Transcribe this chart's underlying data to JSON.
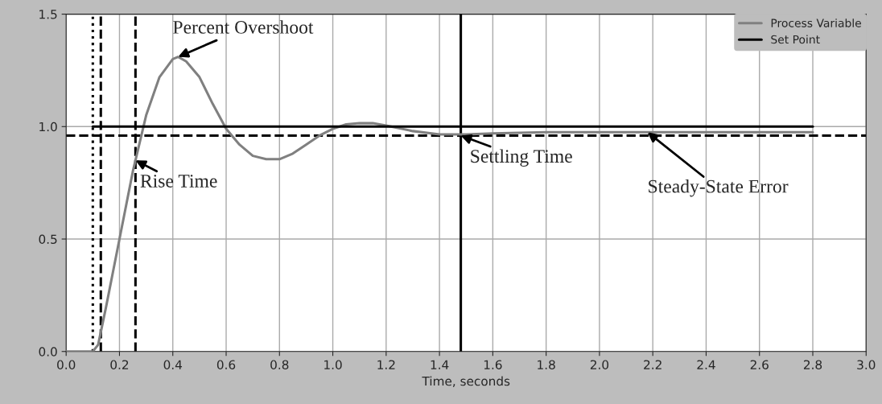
{
  "chart_data": {
    "type": "line",
    "xlabel": "Time, seconds",
    "series": [
      {
        "name": "Process Variable",
        "color": "#808080",
        "line_style": "solid",
        "x": [
          0,
          0.1,
          0.12,
          0.15,
          0.2,
          0.25,
          0.3,
          0.35,
          0.4,
          0.42,
          0.45,
          0.5,
          0.55,
          0.6,
          0.65,
          0.7,
          0.75,
          0.8,
          0.85,
          0.9,
          0.95,
          1.0,
          1.05,
          1.1,
          1.15,
          1.2,
          1.3,
          1.4,
          1.5,
          1.6,
          1.8,
          2.0,
          2.2,
          2.8
        ],
        "values": [
          0,
          0,
          0.03,
          0.2,
          0.5,
          0.8,
          1.05,
          1.22,
          1.3,
          1.31,
          1.29,
          1.22,
          1.1,
          0.99,
          0.92,
          0.87,
          0.855,
          0.855,
          0.88,
          0.92,
          0.96,
          0.99,
          1.01,
          1.015,
          1.015,
          1.005,
          0.98,
          0.965,
          0.965,
          0.97,
          0.975,
          0.975,
          0.975,
          0.975
        ]
      },
      {
        "name": "Set Point",
        "color": "#000000",
        "line_style": "solid",
        "x": [
          0.1,
          2.8
        ],
        "values": [
          1.0,
          1.0
        ]
      }
    ],
    "ref_lines": [
      {
        "axis": "x",
        "value": 0.1,
        "color": "#000000",
        "line_style": "dotted"
      },
      {
        "axis": "x",
        "value": 0.13,
        "color": "#000000",
        "line_style": "dashed"
      },
      {
        "axis": "x",
        "value": 0.26,
        "color": "#000000",
        "line_style": "dashed"
      },
      {
        "axis": "x",
        "value": 1.48,
        "color": "#000000",
        "line_style": "solid"
      },
      {
        "axis": "y",
        "value": 0.96,
        "color": "#000000",
        "line_style": "dashed"
      }
    ],
    "annotations": [
      {
        "text": "Percent Overshoot",
        "x": 0.42,
        "y": 1.31
      },
      {
        "text": "Rise Time",
        "x": 0.26,
        "y": 0.85
      },
      {
        "text": "Settling Time",
        "x": 1.48,
        "y": 0.96
      },
      {
        "text": "Steady-State Error",
        "x": 2.18,
        "y": 0.975
      }
    ],
    "xlim": [
      0,
      3.0
    ],
    "ylim": [
      0,
      1.5
    ],
    "xticks": [
      {
        "value": 0,
        "label": "0.0"
      },
      0.2,
      0.4,
      0.6,
      0.8,
      {
        "value": 1,
        "label": "1.0"
      },
      1.2,
      1.4,
      1.6,
      1.8,
      {
        "value": 2,
        "label": "2.0"
      },
      2.2,
      2.4,
      2.6,
      2.8,
      {
        "value": 3,
        "label": "3.0"
      }
    ],
    "yticks": [
      {
        "value": 0,
        "label": "0.0"
      },
      0.5,
      {
        "value": 1,
        "label": "1.0"
      },
      1.5
    ],
    "grid": true,
    "legend": "top right",
    "marker": "none"
  }
}
